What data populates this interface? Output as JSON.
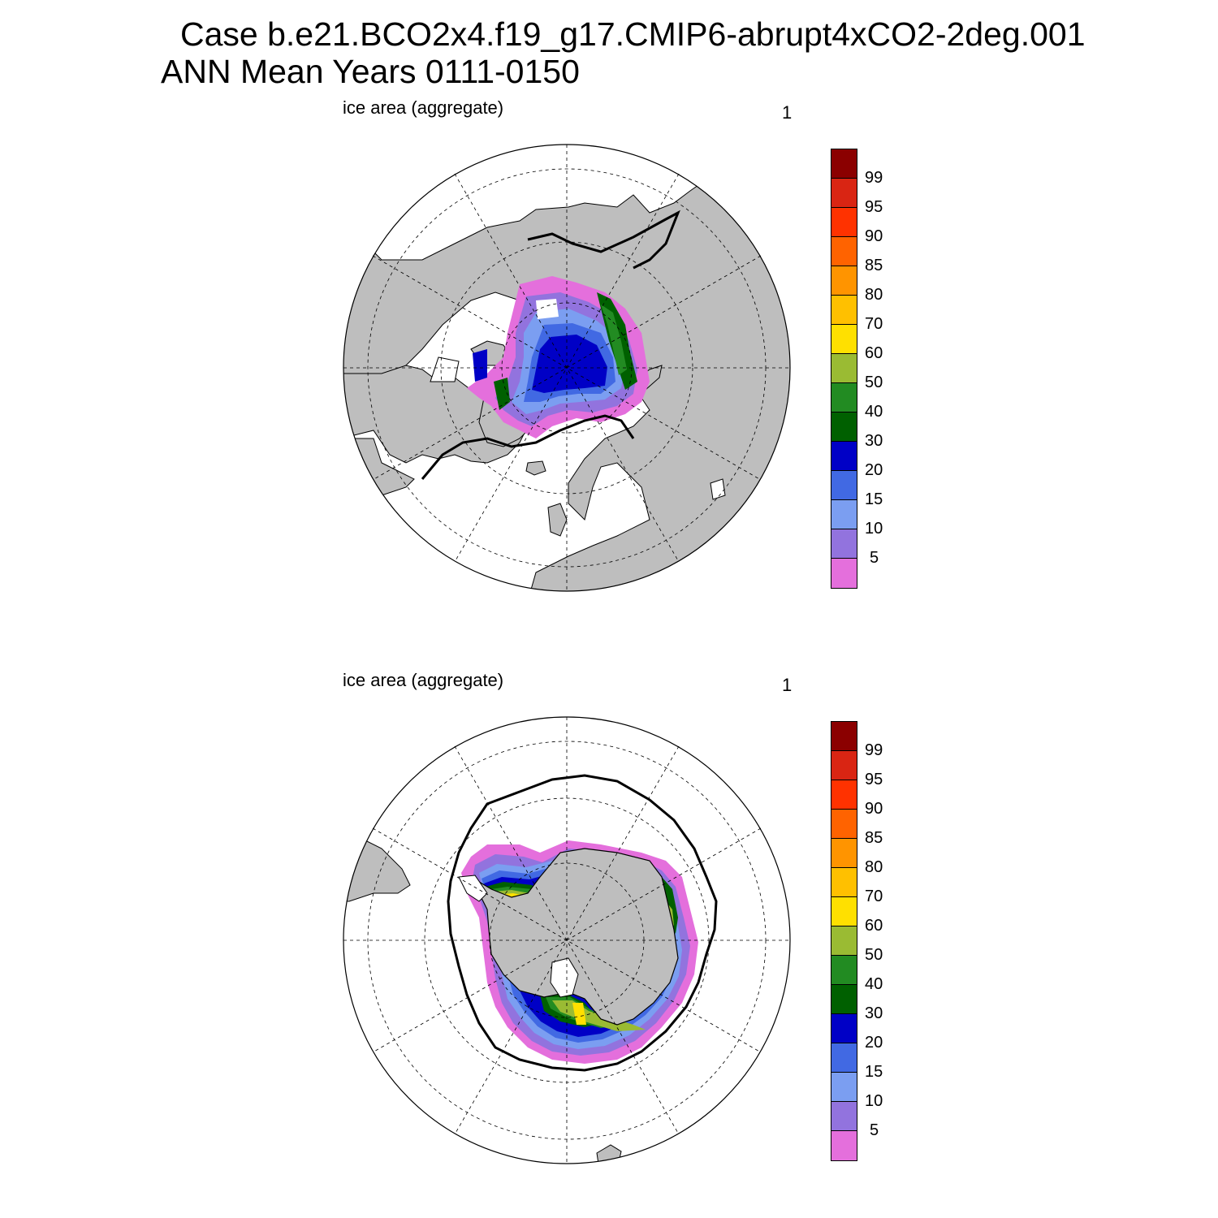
{
  "header": {
    "line1": "Case b.e21.BCO2x4.f19_g17.CMIP6-abrupt4xCO2-2deg.001",
    "line2": "ANN Mean     Years 0111-0150"
  },
  "panels": [
    {
      "id": "north",
      "title": "ice area  (aggregate)",
      "units": "1"
    },
    {
      "id": "south",
      "title": "ice area  (aggregate)",
      "units": "1"
    }
  ],
  "colorbar": {
    "levels": [
      "5",
      "10",
      "15",
      "20",
      "30",
      "40",
      "50",
      "60",
      "70",
      "80",
      "85",
      "90",
      "95",
      "99"
    ],
    "colors": [
      "#e46fdc",
      "#9273de",
      "#7b9ef1",
      "#4169e3",
      "#0000c6",
      "#006000",
      "#228b22",
      "#9abb33",
      "#ffe000",
      "#ffc000",
      "#ff9400",
      "#ff6300",
      "#ff3200",
      "#d92513",
      "#8b0000"
    ]
  },
  "map_colors": {
    "land": "#bebebe",
    "ocean": "#ffffff",
    "coast": "#000000",
    "reference_contour": "#000000"
  }
}
